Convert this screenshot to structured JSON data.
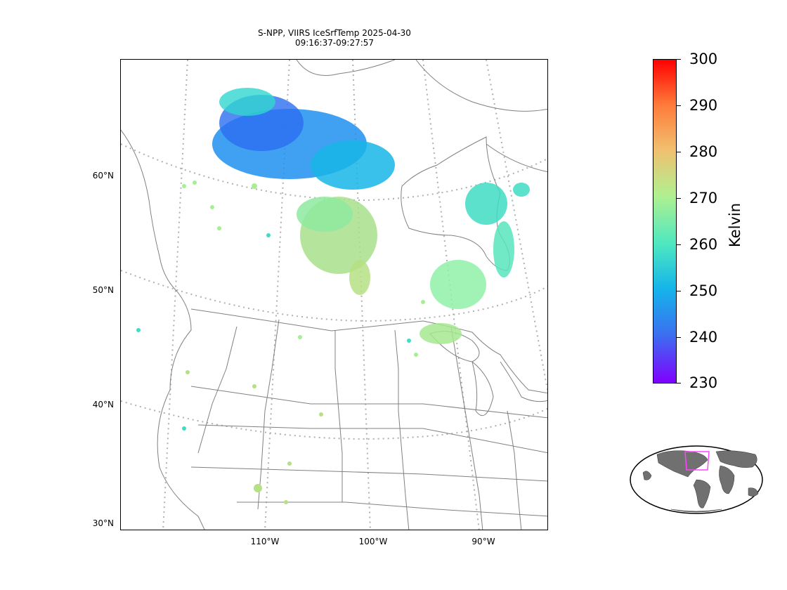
{
  "title": {
    "line1": "S-NPP, VIIRS IceSrfTemp 2025-04-30",
    "line2": "09:16:37-09:27:57"
  },
  "map": {
    "lat_labels": [
      "60°N",
      "50°N",
      "40°N",
      "30°N"
    ],
    "lon_labels": [
      "110°W",
      "100°W",
      "90°W"
    ],
    "land_color": "#ffffff",
    "border_color": "#808080",
    "graticule_color": "#b0b0b0"
  },
  "colorbar": {
    "unit": "Kelvin",
    "ticks": [
      "300",
      "290",
      "280",
      "270",
      "260",
      "250",
      "240",
      "230"
    ],
    "min": 230,
    "max": 300,
    "colormap": "rainbow"
  },
  "inset": {
    "land_color": "#707070",
    "box_color": "#ff44ff"
  }
}
